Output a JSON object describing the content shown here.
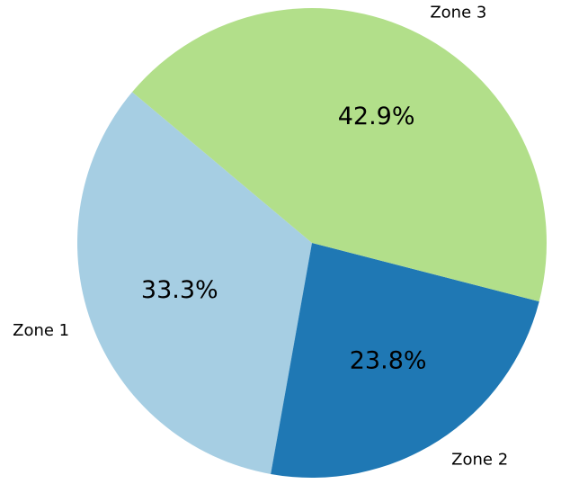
{
  "chart_data": {
    "type": "pie",
    "categories": [
      "Zone 1",
      "Zone 2",
      "Zone 3"
    ],
    "values": [
      33.3,
      23.8,
      42.9
    ],
    "value_labels": [
      "33.3%",
      "23.8%",
      "42.9%"
    ],
    "colors": [
      "#a6cee3",
      "#1f78b4",
      "#b2df8a"
    ]
  }
}
